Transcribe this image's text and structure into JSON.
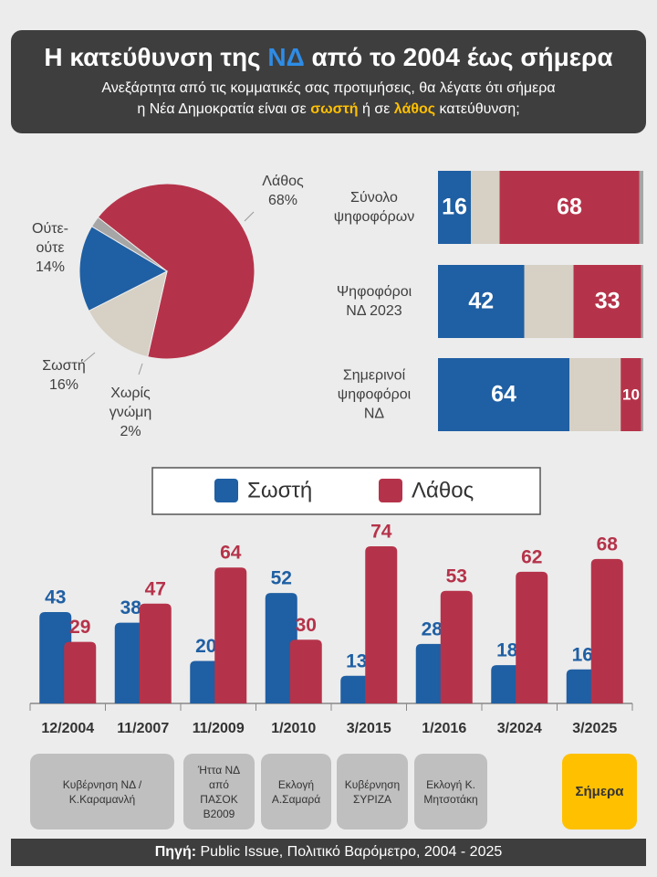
{
  "header": {
    "title": [
      "Η κατεύθυνση της ",
      "ΝΔ",
      " από το 2004 έως σήμερα"
    ],
    "subtitle": [
      "Ανεξάρτητα από τις κομματικές σας προτιμήσεις, θα λέγατε ότι σήμερα",
      "η Νέα Δημοκρατία είναι σε ",
      "σωστή",
      " ή σε ",
      "λάθος",
      " κατεύθυνση;"
    ]
  },
  "chart_data": [
    {
      "type": "pie",
      "categories": [
        "Λάθος",
        "Ούτε-ούτε",
        "Σωστή",
        "Χωρίς γνώμη"
      ],
      "values": [
        68,
        14,
        16,
        2
      ],
      "value_labels": [
        "68%",
        "14%",
        "16%",
        "2%"
      ],
      "colors": [
        "#b5334a",
        "#d6d0c5",
        "#1f5fa3",
        "#a6a6a6"
      ]
    },
    {
      "type": "hbar",
      "categories": [
        "Σύνολο ψηφοφόρων",
        "Ψηφοφόροι ΝΔ 2023",
        "Σημερινοί ψηφοφόροι ΝΔ"
      ],
      "series": [
        {
          "name": "Σωστή",
          "color": "#1f5fa3",
          "values": [
            16,
            42,
            64
          ]
        },
        {
          "color": "#d6d0c5",
          "values": [
            14,
            24,
            25
          ]
        },
        {
          "name": "Λάθος",
          "color": "#b5334a",
          "values": [
            68,
            33,
            10
          ]
        },
        {
          "color": "#a6a6a6",
          "values": [
            2,
            1,
            1
          ]
        }
      ],
      "xlim": [
        0,
        100
      ]
    },
    {
      "type": "bar",
      "categories": [
        "12/2004",
        "11/2007",
        "11/2009",
        "1/2010",
        "3/2015",
        "1/2016",
        "3/2024",
        "3/2025"
      ],
      "series": [
        {
          "name": "Σωστή",
          "color": "#1f5fa3",
          "values": [
            43,
            38,
            20,
            52,
            13,
            28,
            18,
            16
          ]
        },
        {
          "name": "Λάθος",
          "color": "#b5334a",
          "values": [
            29,
            47,
            64,
            30,
            74,
            53,
            62,
            68
          ]
        }
      ],
      "ylim": [
        0,
        80
      ],
      "annotations": [
        "Κυβέρνηση ΝΔ / Κ.Καραμανλή",
        "Ήττα ΝΔ από ΠΑΣΟΚ Β2009",
        "Εκλογή Α.Σαμαρά",
        "Κυβέρνηση ΣΥΡΙΖΑ",
        "Εκλογή Κ. Μητσοτάκη",
        "Σήμερα"
      ]
    }
  ],
  "footer": {
    "label": "Πηγή:",
    "text": " Public Issue, Πολιτικό Βαρόμετρο, 2004 - 2025"
  }
}
